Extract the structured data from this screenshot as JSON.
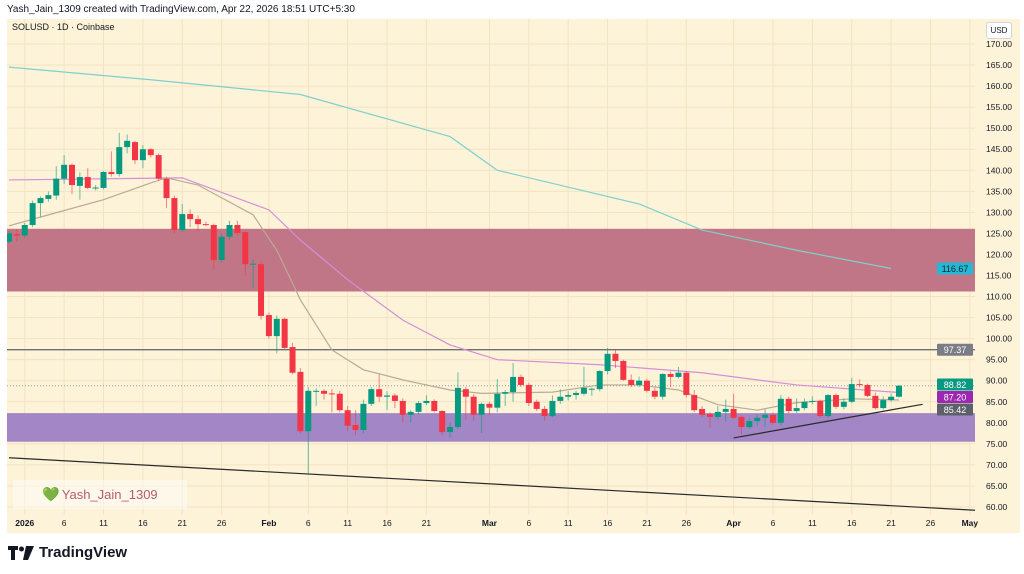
{
  "header": {
    "attribution": "Yash_Jain_1309 created with TradingView.com, Apr 22, 2026 18:51 UTC+5:30",
    "symbol_line": "SOLUSD · 1D · Coinbase",
    "currency_button": "USD"
  },
  "watermark": {
    "icon": "heart-icon",
    "text": "Yash_Jain_1309"
  },
  "footer": {
    "logo_text": "TradingView"
  },
  "colors": {
    "background": "#fdf3d9",
    "up": "#089981",
    "down": "#f23645",
    "resistance_zone": "#bd6f82",
    "support_zone": "#9e7fc4",
    "ma_long": "#7fd0cc",
    "ma_mid": "#d48fd8",
    "ma_short": "#b8ab97",
    "label_ma_long": "#26b7d4",
    "label_hline": "#7a7d86",
    "label_last": "#089981",
    "label_ma_mid": "#9c27b0",
    "label_ma_short": "#5d606b"
  },
  "chart_data": {
    "type": "candlestick",
    "symbol": "SOLUSD",
    "interval": "1D",
    "exchange": "Coinbase",
    "ylim": [
      58,
      172
    ],
    "xlim": [
      "2025-12-29",
      "2026-05-05"
    ],
    "y_ticks": [
      "60.00",
      "65.00",
      "70.00",
      "75.00",
      "80.00",
      "85.00",
      "90.00",
      "95.00",
      "100.00",
      "105.00",
      "110.00",
      "115.00",
      "120.00",
      "125.00",
      "130.00",
      "135.00",
      "140.00",
      "145.00",
      "150.00",
      "155.00",
      "160.00",
      "165.00",
      "170.00"
    ],
    "x_ticks": [
      {
        "label": "2026",
        "date": "2026-01-01"
      },
      {
        "label": "6",
        "date": "2026-01-06"
      },
      {
        "label": "11",
        "date": "2026-01-11"
      },
      {
        "label": "16",
        "date": "2026-01-16"
      },
      {
        "label": "21",
        "date": "2026-01-21"
      },
      {
        "label": "26",
        "date": "2026-01-26"
      },
      {
        "label": "Feb",
        "date": "2026-02-01"
      },
      {
        "label": "6",
        "date": "2026-02-06"
      },
      {
        "label": "11",
        "date": "2026-02-11"
      },
      {
        "label": "16",
        "date": "2026-02-16"
      },
      {
        "label": "21",
        "date": "2026-02-21"
      },
      {
        "label": "Mar",
        "date": "2026-03-01"
      },
      {
        "label": "6",
        "date": "2026-03-06"
      },
      {
        "label": "11",
        "date": "2026-03-11"
      },
      {
        "label": "16",
        "date": "2026-03-16"
      },
      {
        "label": "21",
        "date": "2026-03-21"
      },
      {
        "label": "26",
        "date": "2026-03-26"
      },
      {
        "label": "Apr",
        "date": "2026-04-01"
      },
      {
        "label": "6",
        "date": "2026-04-06"
      },
      {
        "label": "11",
        "date": "2026-04-11"
      },
      {
        "label": "16",
        "date": "2026-04-16"
      },
      {
        "label": "21",
        "date": "2026-04-21"
      },
      {
        "label": "26",
        "date": "2026-04-26"
      },
      {
        "label": "May",
        "date": "2026-05-01"
      }
    ],
    "grid": true,
    "candles": [
      [
        "2025-12-30",
        123,
        125.5,
        122.5,
        125
      ],
      [
        "2025-12-31",
        124.8,
        126,
        123,
        124.5
      ],
      [
        "2026-01-01",
        124.5,
        127.5,
        124,
        127
      ],
      [
        "2026-01-02",
        127,
        132.8,
        126.5,
        132.2
      ],
      [
        "2026-01-03",
        132.2,
        133.8,
        129,
        133.4
      ],
      [
        "2026-01-04",
        133.2,
        135,
        132.5,
        134.1
      ],
      [
        "2026-01-05",
        134,
        141,
        133,
        138
      ],
      [
        "2026-01-06",
        138,
        143.6,
        136.8,
        141.3
      ],
      [
        "2026-01-07",
        141.3,
        141.6,
        134.3,
        136.5
      ],
      [
        "2026-01-08",
        136.3,
        139.5,
        133,
        138.4
      ],
      [
        "2026-01-09",
        138.4,
        140.5,
        135.5,
        135.8
      ],
      [
        "2026-01-10",
        135.8,
        136.5,
        135.2,
        135.9
      ],
      [
        "2026-01-11",
        135.8,
        139.8,
        135.5,
        139.6
      ],
      [
        "2026-01-12",
        139.6,
        144.5,
        138.5,
        139.1
      ],
      [
        "2026-01-13",
        139.1,
        148.9,
        138.5,
        145.5
      ],
      [
        "2026-01-14",
        145.5,
        148.5,
        144,
        147
      ],
      [
        "2026-01-15",
        146.7,
        147,
        141.5,
        142.4
      ],
      [
        "2026-01-16",
        142.4,
        146,
        140.5,
        145
      ],
      [
        "2026-01-17",
        145,
        145.2,
        143,
        143.6
      ],
      [
        "2026-01-18",
        143.6,
        144,
        137.5,
        138
      ],
      [
        "2026-01-19",
        138,
        138.5,
        131,
        133.4
      ],
      [
        "2026-01-20",
        133.4,
        134,
        125,
        125.8
      ],
      [
        "2026-01-21",
        125.8,
        132,
        125.3,
        129.6
      ],
      [
        "2026-01-22",
        129.6,
        130.7,
        126.5,
        128.4
      ],
      [
        "2026-01-23",
        128.4,
        129.3,
        125.5,
        127.2
      ],
      [
        "2026-01-24",
        127.2,
        127.8,
        126.8,
        127.1
      ],
      [
        "2026-01-25",
        127,
        127.3,
        116.5,
        118.7
      ],
      [
        "2026-01-26",
        118.7,
        125,
        118,
        124.2
      ],
      [
        "2026-01-27",
        124.2,
        128,
        123.5,
        127
      ],
      [
        "2026-01-28",
        127,
        128,
        124.5,
        125.1
      ],
      [
        "2026-01-29",
        125.3,
        125.5,
        115,
        117.7
      ],
      [
        "2026-01-30",
        117.7,
        118.8,
        112,
        117.8
      ],
      [
        "2026-01-31",
        117.7,
        118.5,
        104.5,
        105.4
      ],
      [
        "2026-02-01",
        105.6,
        106.2,
        100,
        100.6
      ],
      [
        "2026-02-02",
        100.6,
        105.5,
        96.5,
        104.7
      ],
      [
        "2026-02-03",
        104.7,
        105,
        97.5,
        97.8
      ],
      [
        "2026-02-04",
        98,
        99,
        91.5,
        91.9
      ],
      [
        "2026-02-05",
        92.1,
        93,
        77.5,
        78
      ],
      [
        "2026-02-06",
        78,
        88.5,
        67.6,
        87.6
      ],
      [
        "2026-02-07",
        87.4,
        88.2,
        84,
        87.6
      ],
      [
        "2026-02-08",
        87.6,
        88,
        85.5,
        86.9
      ],
      [
        "2026-02-09",
        87,
        88,
        82.5,
        86.8
      ],
      [
        "2026-02-10",
        86.9,
        87.6,
        82.5,
        83
      ],
      [
        "2026-02-11",
        83,
        84,
        78,
        79.3
      ],
      [
        "2026-02-12",
        79.5,
        83,
        77,
        78.3
      ],
      [
        "2026-02-13",
        78.3,
        85.5,
        77.5,
        84.5
      ],
      [
        "2026-02-14",
        84.5,
        88.5,
        84,
        88
      ],
      [
        "2026-02-15",
        88,
        91.5,
        85,
        86.2
      ],
      [
        "2026-02-16",
        86.2,
        87.5,
        83,
        86.5
      ],
      [
        "2026-02-17",
        86.5,
        87,
        83.5,
        85.2
      ],
      [
        "2026-02-18",
        85.2,
        85.8,
        80,
        81.9
      ],
      [
        "2026-02-19",
        81.9,
        83,
        80,
        82.6
      ],
      [
        "2026-02-20",
        82.6,
        85.2,
        82,
        84.7
      ],
      [
        "2026-02-21",
        84.7,
        86.5,
        84.2,
        85.2
      ],
      [
        "2026-02-22",
        85.2,
        85.6,
        82.5,
        82.8
      ],
      [
        "2026-02-23",
        82.8,
        83,
        77,
        77.8
      ],
      [
        "2026-02-24",
        77.8,
        80,
        76.5,
        79
      ],
      [
        "2026-02-25",
        79,
        92,
        78.5,
        88.3
      ],
      [
        "2026-02-26",
        88,
        88.5,
        80.7,
        86.2
      ],
      [
        "2026-02-27",
        86.2,
        86.8,
        80.5,
        81.9
      ],
      [
        "2026-02-28",
        81.9,
        84.8,
        77.6,
        84.5
      ],
      [
        "2026-03-01",
        84.5,
        85,
        81.8,
        83.6
      ],
      [
        "2026-03-02",
        83.6,
        90.4,
        82.5,
        86.9
      ],
      [
        "2026-03-03",
        86.9,
        87.8,
        84,
        87.3
      ],
      [
        "2026-03-04",
        87.3,
        94.2,
        85,
        90.9
      ],
      [
        "2026-03-05",
        90.9,
        91.5,
        88.5,
        89
      ],
      [
        "2026-03-06",
        89,
        89.5,
        84,
        84.7
      ],
      [
        "2026-03-07",
        85,
        85.5,
        82.8,
        83.3
      ],
      [
        "2026-03-08",
        83.3,
        84,
        80.5,
        81.6
      ],
      [
        "2026-03-09",
        81.6,
        86.5,
        81.3,
        85.2
      ],
      [
        "2026-03-10",
        85.2,
        88,
        84.5,
        86.2
      ],
      [
        "2026-03-11",
        86.2,
        87.5,
        85.3,
        86.6
      ],
      [
        "2026-03-12",
        86.6,
        87.6,
        85.5,
        87.1
      ],
      [
        "2026-03-13",
        86.9,
        93.3,
        86.5,
        88.3
      ],
      [
        "2026-03-14",
        88,
        88.4,
        86.4,
        88.1
      ],
      [
        "2026-03-15",
        88,
        92.5,
        87.5,
        92.3
      ],
      [
        "2026-03-16",
        92.3,
        97.8,
        91.5,
        96.4
      ],
      [
        "2026-03-17",
        96.4,
        97.5,
        93,
        94.7
      ],
      [
        "2026-03-18",
        94.7,
        95,
        90,
        90.2
      ],
      [
        "2026-03-19",
        90.2,
        91.5,
        88.5,
        89
      ],
      [
        "2026-03-20",
        89,
        91,
        88.5,
        90
      ],
      [
        "2026-03-21",
        90,
        90.5,
        87.2,
        87.6
      ],
      [
        "2026-03-22",
        87.6,
        88.3,
        85.6,
        86.2
      ],
      [
        "2026-03-23",
        86.2,
        91.8,
        85.5,
        91.6
      ],
      [
        "2026-03-24",
        91.6,
        92.2,
        88.5,
        90.9
      ],
      [
        "2026-03-25",
        90.9,
        93.3,
        90.5,
        91.9
      ],
      [
        "2026-03-26",
        91.9,
        92.3,
        86,
        86.6
      ],
      [
        "2026-03-27",
        86.6,
        87.8,
        82.5,
        83
      ],
      [
        "2026-03-28",
        83.3,
        84,
        81.4,
        81.9
      ],
      [
        "2026-03-29",
        82.1,
        82.5,
        78.8,
        81.4
      ],
      [
        "2026-03-30",
        81.4,
        84,
        80.8,
        82.6
      ],
      [
        "2026-03-31",
        82.6,
        85.5,
        80.3,
        83.3
      ],
      [
        "2026-04-01",
        83.3,
        86.9,
        80.9,
        81.2
      ],
      [
        "2026-04-02",
        81.4,
        81.7,
        77.2,
        79
      ],
      [
        "2026-04-03",
        79,
        81,
        78.6,
        80.4
      ],
      [
        "2026-04-04",
        80.4,
        82,
        79.2,
        81.2
      ],
      [
        "2026-04-05",
        81.2,
        83.2,
        79,
        81.9
      ],
      [
        "2026-04-06",
        81.9,
        82.4,
        79.6,
        80
      ],
      [
        "2026-04-07",
        80,
        86.6,
        79.4,
        85.7
      ],
      [
        "2026-04-08",
        85.7,
        86.2,
        82.3,
        82.8
      ],
      [
        "2026-04-09",
        82.8,
        85.8,
        82.4,
        83.5
      ],
      [
        "2026-04-10",
        83.5,
        85.8,
        83,
        85
      ],
      [
        "2026-04-11",
        85.1,
        86.3,
        84.4,
        85.2
      ],
      [
        "2026-04-12",
        85.2,
        85.5,
        81.2,
        81.6
      ],
      [
        "2026-04-13",
        81.6,
        86.9,
        81.2,
        86.6
      ],
      [
        "2026-04-14",
        86.6,
        87,
        83.3,
        83.8
      ],
      [
        "2026-04-15",
        83.8,
        85.8,
        83.2,
        85
      ],
      [
        "2026-04-16",
        85,
        90.7,
        84.7,
        89.2
      ],
      [
        "2026-04-17",
        89.2,
        90.3,
        88.4,
        89
      ],
      [
        "2026-04-18",
        89,
        89.3,
        86.1,
        86.4
      ],
      [
        "2026-04-19",
        86.4,
        87.2,
        83.2,
        83.5
      ],
      [
        "2026-04-20",
        83.5,
        86.3,
        83.2,
        85.4
      ],
      [
        "2026-04-21",
        85.4,
        87,
        85,
        86.2
      ],
      [
        "2026-04-22",
        86.2,
        89,
        86,
        88.82
      ]
    ],
    "moving_averages": [
      {
        "key": "ma_long",
        "last": "116.67",
        "points": [
          [
            "2025-12-30",
            164.5
          ],
          [
            "2026-01-17",
            161.5
          ],
          [
            "2026-02-05",
            158
          ],
          [
            "2026-02-24",
            148
          ],
          [
            "2026-03-02",
            140
          ],
          [
            "2026-03-20",
            132
          ],
          [
            "2026-03-28",
            125.8
          ],
          [
            "2026-04-09",
            121
          ],
          [
            "2026-04-21",
            116.67
          ]
        ]
      },
      {
        "key": "ma_mid",
        "last": "87.20",
        "points": [
          [
            "2025-12-30",
            137.7
          ],
          [
            "2026-01-21",
            138.2
          ],
          [
            "2026-02-01",
            130.6
          ],
          [
            "2026-02-05",
            123.4
          ],
          [
            "2026-02-11",
            114
          ],
          [
            "2026-02-18",
            104.4
          ],
          [
            "2026-02-24",
            98.5
          ],
          [
            "2026-03-02",
            95
          ],
          [
            "2026-03-15",
            93.8
          ],
          [
            "2026-03-28",
            91.9
          ],
          [
            "2026-04-09",
            89
          ],
          [
            "2026-04-22",
            87.2
          ]
        ]
      },
      {
        "key": "ma_short",
        "last": "85.42",
        "points": [
          [
            "2025-12-30",
            126.8
          ],
          [
            "2026-01-04",
            129.4
          ],
          [
            "2026-01-11",
            133
          ],
          [
            "2026-01-17",
            137
          ],
          [
            "2026-01-19",
            138.2
          ],
          [
            "2026-01-23",
            136.5
          ],
          [
            "2026-01-30",
            129.4
          ],
          [
            "2026-02-02",
            121
          ],
          [
            "2026-02-05",
            109.2
          ],
          [
            "2026-02-09",
            97.3
          ],
          [
            "2026-02-13",
            92.6
          ],
          [
            "2026-02-18",
            90.2
          ],
          [
            "2026-02-24",
            87.8
          ],
          [
            "2026-02-28",
            87
          ],
          [
            "2026-03-09",
            87.3
          ],
          [
            "2026-03-15",
            89
          ],
          [
            "2026-03-20",
            89
          ],
          [
            "2026-03-25",
            87.8
          ],
          [
            "2026-03-30",
            84.3
          ],
          [
            "2026-04-04",
            83
          ],
          [
            "2026-04-09",
            84.8
          ],
          [
            "2026-04-16",
            85.7
          ],
          [
            "2026-04-22",
            85.42
          ]
        ]
      }
    ],
    "zones": [
      {
        "key": "resistance_zone",
        "from": 111.2,
        "to": 126.1
      },
      {
        "key": "support_zone",
        "from": 75.5,
        "to": 82.3
      }
    ],
    "horizontal_line": {
      "value": 97.37,
      "label": "97.37"
    },
    "last_price": {
      "value": 88.82,
      "label": "88.82"
    },
    "trendlines": [
      {
        "key": "descending_line",
        "from": [
          "2025-12-30",
          71.7
        ],
        "to": [
          "2026-05-02",
          59.2
        ]
      },
      {
        "key": "ascending_support",
        "from": [
          "2026-04-01",
          76.4
        ],
        "to": [
          "2026-04-25",
          84.4
        ]
      }
    ]
  }
}
